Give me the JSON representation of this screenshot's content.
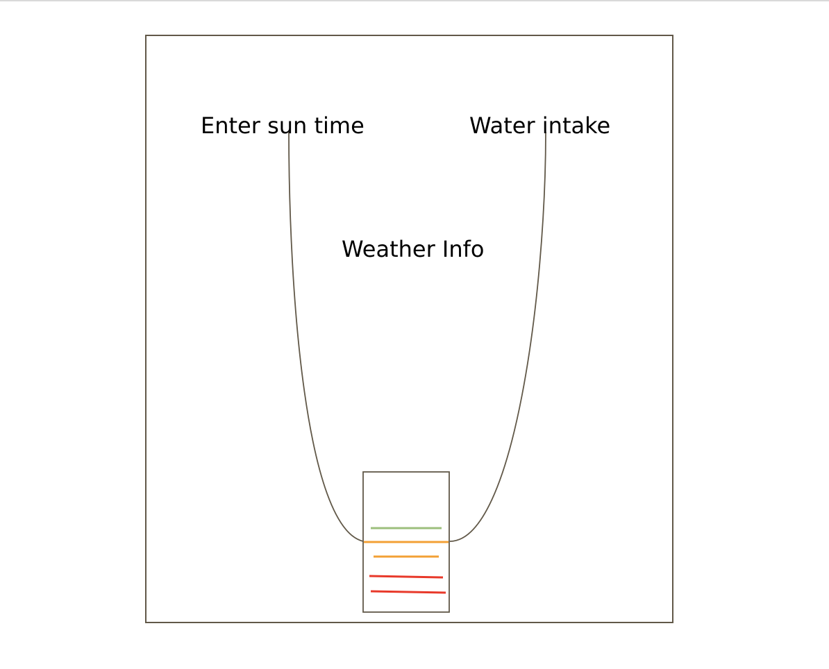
{
  "labels": {
    "sun": "Enter sun time",
    "water": "Water intake",
    "weather": "Weather Info"
  },
  "colors": {
    "stroke": "#615848",
    "level_green": "#9cbf7c",
    "level_orange": "#f3a035",
    "level_red": "#e8392a"
  }
}
